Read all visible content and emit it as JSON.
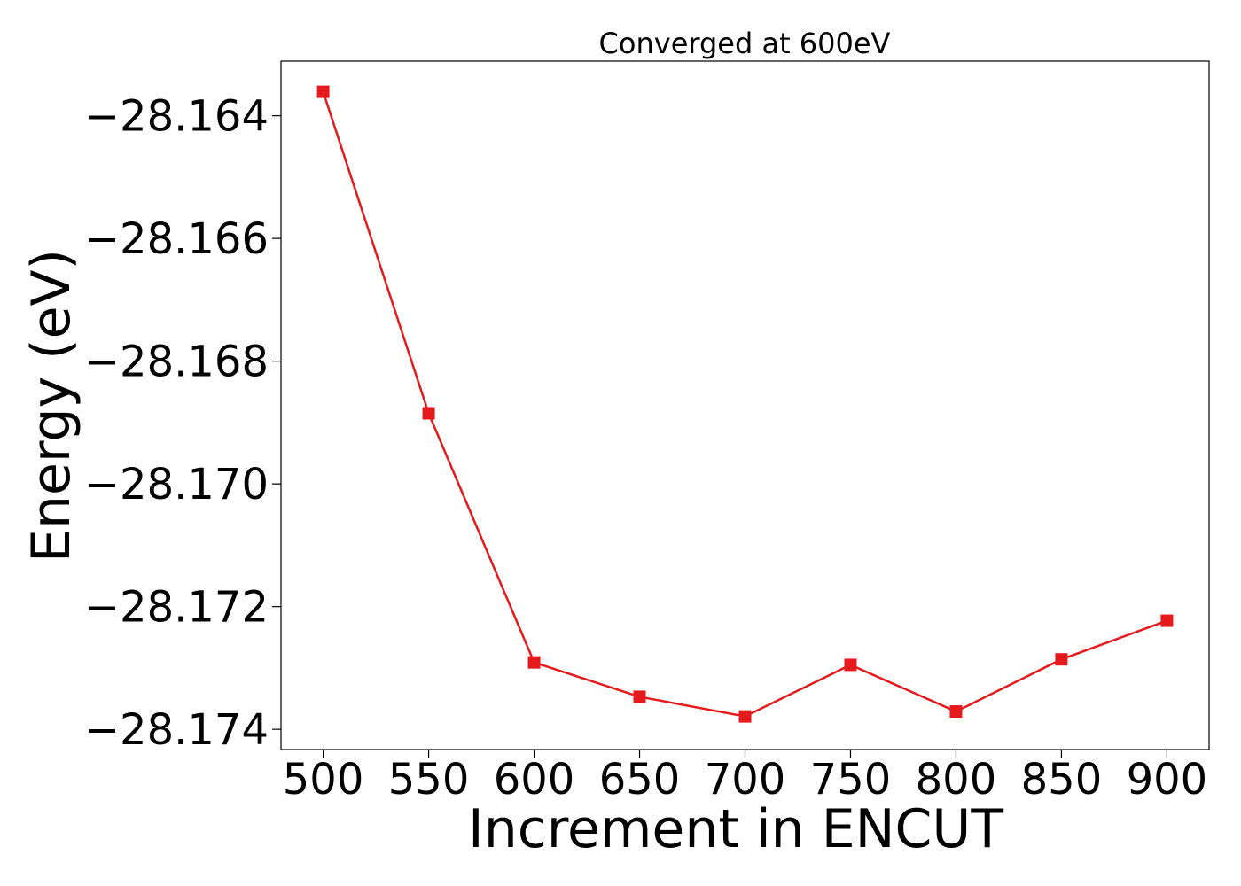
{
  "chart_data": {
    "type": "line",
    "title": "Converged at 600eV",
    "xlabel": "Increment in ENCUT",
    "ylabel": "Energy (eV)",
    "x": [
      500,
      550,
      600,
      650,
      700,
      750,
      800,
      850,
      900
    ],
    "series": [
      {
        "values": [
          -28.16361,
          -28.16885,
          -28.17291,
          -28.17347,
          -28.17379,
          -28.17295,
          -28.17371,
          -28.17286,
          -28.17223
        ],
        "color": "#e41a1c",
        "marker": "square"
      }
    ],
    "xticks": [
      500,
      550,
      600,
      650,
      700,
      750,
      800,
      850,
      900
    ],
    "xtick_labels": [
      "500",
      "550",
      "600",
      "650",
      "700",
      "750",
      "800",
      "850",
      "900"
    ],
    "yticks": [
      -28.164,
      -28.166,
      -28.168,
      -28.17,
      -28.172,
      -28.174
    ],
    "ytick_labels": [
      "−28.164",
      "−28.166",
      "−28.168",
      "−28.170",
      "−28.172",
      "−28.174"
    ],
    "xlim": [
      480,
      920
    ],
    "ylim": [
      -28.17433,
      -28.16311
    ],
    "grid": false,
    "legend": "none"
  }
}
